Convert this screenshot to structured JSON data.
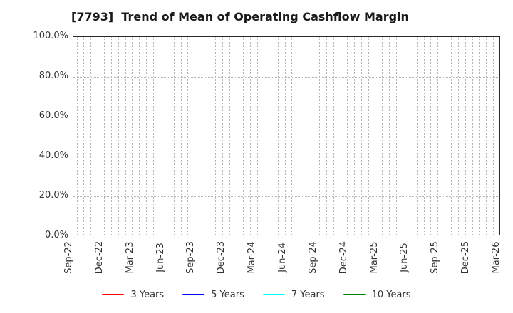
{
  "chart_data": {
    "type": "line",
    "title": "[7793]  Trend of Mean of Operating Cashflow Margin",
    "xlabel": "",
    "ylabel": "",
    "ylim": [
      0,
      100
    ],
    "y_unit": "%",
    "y_tick_labels": [
      "0.0%",
      "20.0%",
      "40.0%",
      "60.0%",
      "80.0%",
      "100.0%"
    ],
    "x_tick_labels": [
      "Sep-22",
      "Dec-22",
      "Mar-23",
      "Jun-23",
      "Sep-23",
      "Dec-23",
      "Mar-24",
      "Jun-24",
      "Sep-24",
      "Dec-24",
      "Mar-25",
      "Jun-25",
      "Sep-25",
      "Dec-25",
      "Mar-26"
    ],
    "grid": "dotted",
    "legend_position": "bottom",
    "series": [
      {
        "name": "3 Years",
        "color": "#ff0000",
        "values": []
      },
      {
        "name": "5 Years",
        "color": "#0000ff",
        "values": []
      },
      {
        "name": "7 Years",
        "color": "#00ffff",
        "values": []
      },
      {
        "name": "10 Years",
        "color": "#008000",
        "values": []
      }
    ]
  }
}
